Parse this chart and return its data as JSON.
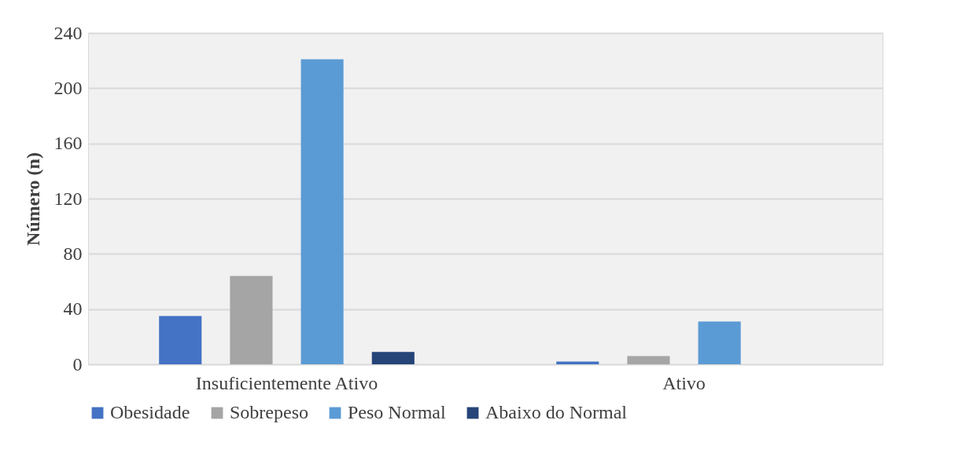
{
  "chart_data": {
    "type": "bar",
    "ylabel": "Número (n)",
    "categories": [
      "Insuficientemente Ativo",
      "Ativo"
    ],
    "series": [
      {
        "name": "Obesidade",
        "color": "#4472c4",
        "values": [
          35,
          2
        ]
      },
      {
        "name": "Sobrepeso",
        "color": "#a5a5a5",
        "values": [
          64,
          6
        ]
      },
      {
        "name": "Peso Normal",
        "color": "#5b9bd5",
        "values": [
          221,
          31
        ]
      },
      {
        "name": "Abaixo do Normal",
        "color": "#264478",
        "values": [
          9,
          0
        ]
      }
    ],
    "ylim": [
      0,
      240
    ],
    "yticks": [
      0,
      40,
      80,
      120,
      160,
      200,
      240
    ],
    "grid": "y",
    "legend": "bottom"
  }
}
